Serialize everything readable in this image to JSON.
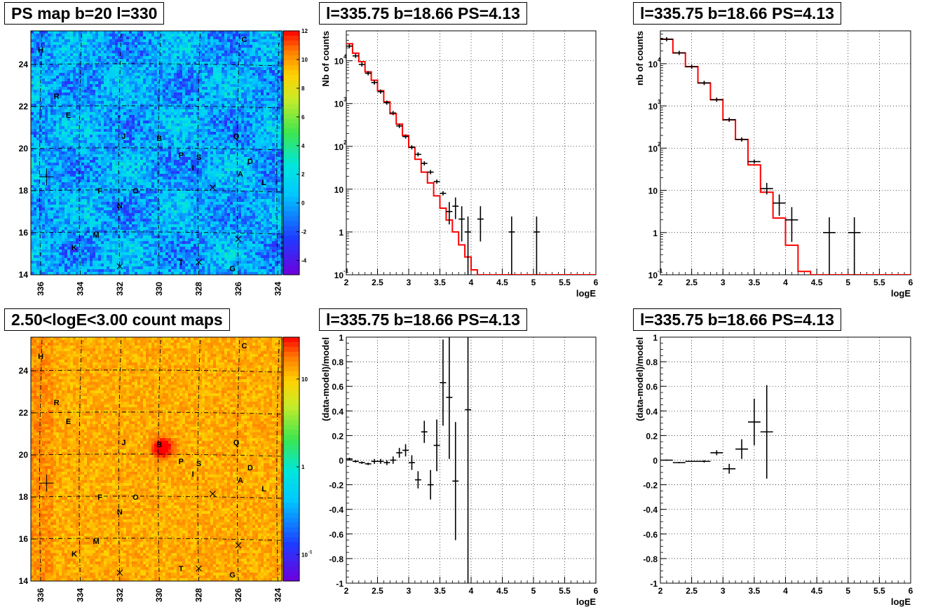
{
  "chart_data": [
    {
      "type": "heatmap",
      "title": "PS map b=20 l=330",
      "x_ticks": [
        "336",
        "334",
        "332",
        "330",
        "328",
        "326",
        "324"
      ],
      "y_ticks": [
        "14",
        "16",
        "18",
        "20",
        "22",
        "24"
      ],
      "xlim": [
        336.5,
        323.8
      ],
      "ylim": [
        14,
        25.6
      ],
      "colorbar": {
        "scale": "linear",
        "range": [
          -5,
          12
        ],
        "ticks": [
          "12",
          "10",
          "8",
          "6",
          "4",
          "2",
          "0",
          "-2",
          "-4"
        ]
      },
      "dominant_level": 0,
      "marker": {
        "shape": "cross",
        "l": 335.7,
        "b": 18.66
      },
      "x_markers": [
        {
          "l": 327.3,
          "b": 18.15
        },
        {
          "l": 326.0,
          "b": 15.7
        },
        {
          "l": 332.0,
          "b": 14.4
        },
        {
          "l": 328.0,
          "b": 14.6
        }
      ],
      "labels": [
        {
          "text": "C",
          "l": 325.7,
          "b": 25.2
        },
        {
          "text": "H",
          "l": 336.0,
          "b": 24.7
        },
        {
          "text": "R",
          "l": 335.2,
          "b": 22.5
        },
        {
          "text": "E",
          "l": 334.6,
          "b": 21.6
        },
        {
          "text": "J",
          "l": 331.8,
          "b": 20.6
        },
        {
          "text": "B",
          "l": 330.0,
          "b": 20.5
        },
        {
          "text": "Q",
          "l": 326.1,
          "b": 20.6
        },
        {
          "text": "P",
          "l": 328.9,
          "b": 19.7
        },
        {
          "text": "S",
          "l": 328.0,
          "b": 19.6
        },
        {
          "text": "D",
          "l": 325.4,
          "b": 19.4
        },
        {
          "text": "I",
          "l": 328.3,
          "b": 19.1
        },
        {
          "text": "A",
          "l": 325.9,
          "b": 18.8
        },
        {
          "text": "L",
          "l": 324.7,
          "b": 18.4
        },
        {
          "text": "F",
          "l": 333.0,
          "b": 18.0
        },
        {
          "text": "O",
          "l": 331.2,
          "b": 18.0
        },
        {
          "text": "N",
          "l": 332.0,
          "b": 17.3
        },
        {
          "text": "M",
          "l": 333.2,
          "b": 15.9
        },
        {
          "text": "K",
          "l": 334.3,
          "b": 15.3
        },
        {
          "text": "T",
          "l": 328.9,
          "b": 14.6
        },
        {
          "text": "G",
          "l": 326.3,
          "b": 14.3
        }
      ]
    },
    {
      "type": "line",
      "title": "l=335.75 b=18.66 PS=4.13",
      "xlabel": "logE",
      "ylabel": "Nb of counts",
      "xlim": [
        2,
        6
      ],
      "ylim": [
        0.1,
        50000
      ],
      "yscale": "log",
      "x_ticks": [
        "2",
        "2.5",
        "3",
        "3.5",
        "4",
        "4.5",
        "5",
        "5.5",
        "6"
      ],
      "y_ticks": [
        {
          "v": 0.1,
          "t": "10"
        },
        {
          "v": 1,
          "t": "1"
        },
        {
          "v": 10,
          "t": "10"
        },
        {
          "v": 100,
          "t": "10"
        },
        {
          "v": 1000,
          "t": "10"
        },
        {
          "v": 10000,
          "t": "10"
        }
      ],
      "grid": true,
      "series": [
        {
          "role": "model",
          "color": "#ff0000",
          "style": "step",
          "edges": [
            2.0,
            2.1,
            2.2,
            2.3,
            2.4,
            2.5,
            2.6,
            2.7,
            2.8,
            2.9,
            3.0,
            3.1,
            3.2,
            3.3,
            3.4,
            3.5,
            3.6,
            3.7,
            3.8,
            3.9,
            4.0,
            4.1,
            4.2,
            4.3,
            6.0
          ],
          "values": [
            25000,
            15000,
            9500,
            5500,
            3500,
            2000,
            1100,
            580,
            330,
            180,
            95,
            50,
            25,
            14,
            7,
            3.6,
            1.9,
            1.0,
            0.5,
            0.26,
            0.13,
            0.1,
            0.1,
            0.1
          ]
        },
        {
          "role": "data",
          "color": "#000000",
          "x": [
            2.05,
            2.15,
            2.25,
            2.35,
            2.45,
            2.55,
            2.65,
            2.75,
            2.85,
            2.95,
            3.05,
            3.15,
            3.25,
            3.35,
            3.45,
            3.55,
            3.65,
            3.75,
            3.85,
            3.95,
            4.15,
            4.65,
            5.05
          ],
          "y": [
            22000,
            13000,
            8200,
            5100,
            3100,
            1900,
            1050,
            600,
            300,
            170,
            95,
            65,
            40,
            25,
            15,
            8,
            3,
            4,
            2,
            1,
            2,
            1,
            1
          ],
          "err_low": [
            0,
            0,
            0,
            0,
            0,
            0,
            0,
            0,
            0,
            0,
            0,
            0,
            0,
            0,
            0,
            0,
            1.5,
            2.0,
            1.4,
            0.9,
            1.4,
            0.9,
            0.9
          ],
          "err_high": [
            0,
            0,
            0,
            0,
            0,
            0,
            0,
            0,
            0,
            0,
            0,
            0,
            0,
            0,
            0,
            0,
            2,
            2.4,
            2,
            1.3,
            2,
            1.3,
            1.3
          ]
        }
      ]
    },
    {
      "type": "line",
      "title": "l=335.75 b=18.66 PS=4.13",
      "xlabel": "logE",
      "ylabel": "nb of counts",
      "xlim": [
        2,
        6
      ],
      "ylim": [
        0.1,
        60000
      ],
      "yscale": "log",
      "x_ticks": [
        "2",
        "2.5",
        "3",
        "3.5",
        "4",
        "4.5",
        "5",
        "5.5",
        "6"
      ],
      "y_ticks": [
        {
          "v": 0.1,
          "t": "10"
        },
        {
          "v": 1,
          "t": "1"
        },
        {
          "v": 10,
          "t": "10"
        },
        {
          "v": 100,
          "t": "10"
        },
        {
          "v": 1000,
          "t": "10"
        },
        {
          "v": 10000,
          "t": "10"
        }
      ],
      "grid": true,
      "series": [
        {
          "role": "model",
          "color": "#ff0000",
          "style": "step",
          "edges": [
            2.0,
            2.2,
            2.4,
            2.6,
            2.8,
            3.0,
            3.2,
            3.4,
            3.6,
            3.8,
            4.0,
            4.2,
            4.4,
            6.0
          ],
          "values": [
            38000,
            18000,
            8500,
            3500,
            1400,
            470,
            160,
            40,
            9,
            2.2,
            0.5,
            0.12,
            0.1
          ],
          "err_low": [],
          "err_high": []
        },
        {
          "role": "data",
          "color": "#000000",
          "x": [
            2.1,
            2.3,
            2.5,
            2.7,
            2.9,
            3.1,
            3.3,
            3.5,
            3.7,
            3.9,
            4.1,
            4.7,
            5.1
          ],
          "y": [
            38000,
            18000,
            8500,
            3500,
            1400,
            470,
            160,
            48,
            11,
            5,
            2,
            1,
            1
          ],
          "err_low": [
            0,
            0,
            0,
            0,
            0,
            0,
            0,
            0,
            3,
            2.5,
            1.4,
            0.9,
            0.9
          ],
          "err_high": [
            0,
            0,
            0,
            0,
            0,
            0,
            0,
            0,
            4,
            3,
            2,
            1.3,
            1.3
          ]
        }
      ]
    },
    {
      "type": "heatmap",
      "title": "2.50<logE<3.00 count maps",
      "x_ticks": [
        "336",
        "334",
        "332",
        "330",
        "328",
        "326",
        "324"
      ],
      "y_ticks": [
        "14",
        "16",
        "18",
        "20",
        "22",
        "24"
      ],
      "xlim": [
        336.5,
        323.8
      ],
      "ylim": [
        14,
        25.6
      ],
      "colorbar": {
        "scale": "log",
        "range": [
          0.05,
          30
        ],
        "ticks": [
          {
            "v": 10,
            "t": "10"
          },
          {
            "v": 1,
            "t": "1"
          },
          {
            "v": 0.1,
            "t": "10"
          }
        ]
      },
      "dominant_level": 12,
      "hotspot": {
        "l": 329.9,
        "b": 20.4,
        "peak": 30
      },
      "marker": {
        "shape": "cross",
        "l": 335.7,
        "b": 18.66
      },
      "x_markers": [
        {
          "l": 327.3,
          "b": 18.15
        },
        {
          "l": 326.0,
          "b": 15.7
        },
        {
          "l": 332.0,
          "b": 14.4
        },
        {
          "l": 328.0,
          "b": 14.6
        }
      ],
      "labels": [
        {
          "text": "C",
          "l": 325.7,
          "b": 25.2
        },
        {
          "text": "H",
          "l": 336.0,
          "b": 24.7
        },
        {
          "text": "R",
          "l": 335.2,
          "b": 22.5
        },
        {
          "text": "E",
          "l": 334.6,
          "b": 21.6
        },
        {
          "text": "J",
          "l": 331.8,
          "b": 20.6
        },
        {
          "text": "B",
          "l": 330.0,
          "b": 20.5
        },
        {
          "text": "Q",
          "l": 326.1,
          "b": 20.6
        },
        {
          "text": "P",
          "l": 328.9,
          "b": 19.7
        },
        {
          "text": "S",
          "l": 328.0,
          "b": 19.6
        },
        {
          "text": "D",
          "l": 325.4,
          "b": 19.4
        },
        {
          "text": "I",
          "l": 328.3,
          "b": 19.1
        },
        {
          "text": "A",
          "l": 325.9,
          "b": 18.8
        },
        {
          "text": "L",
          "l": 324.7,
          "b": 18.4
        },
        {
          "text": "F",
          "l": 333.0,
          "b": 18.0
        },
        {
          "text": "O",
          "l": 331.2,
          "b": 18.0
        },
        {
          "text": "N",
          "l": 332.0,
          "b": 17.3
        },
        {
          "text": "M",
          "l": 333.2,
          "b": 15.9
        },
        {
          "text": "K",
          "l": 334.3,
          "b": 15.3
        },
        {
          "text": "T",
          "l": 328.9,
          "b": 14.6
        },
        {
          "text": "G",
          "l": 326.3,
          "b": 14.3
        }
      ]
    },
    {
      "type": "scatter",
      "title": "l=335.75 b=18.66 PS=4.13",
      "xlabel": "logE",
      "ylabel": "(data-model)/model",
      "xlim": [
        2,
        6
      ],
      "ylim": [
        -1,
        1
      ],
      "x_ticks": [
        "2",
        "2.5",
        "3",
        "3.5",
        "4",
        "4.5",
        "5",
        "5.5",
        "6"
      ],
      "y_ticks": [
        "-1",
        "-0.8",
        "-0.6",
        "-0.4",
        "-0.2",
        "0",
        "0.2",
        "0.4",
        "0.6",
        "0.8",
        "1"
      ],
      "grid": true,
      "series": [
        {
          "role": "residual",
          "color": "#000000",
          "xerr": 0.05,
          "x": [
            2.05,
            2.15,
            2.25,
            2.35,
            2.45,
            2.55,
            2.65,
            2.75,
            2.85,
            2.95,
            3.05,
            3.15,
            3.25,
            3.35,
            3.45,
            3.55,
            3.65,
            3.75,
            3.95
          ],
          "y": [
            0.01,
            -0.01,
            -0.02,
            -0.03,
            -0.01,
            -0.01,
            -0.02,
            0.0,
            0.06,
            0.08,
            -0.02,
            -0.16,
            0.23,
            -0.2,
            0.12,
            0.63,
            0.51,
            -0.17,
            0.41
          ],
          "err": [
            0.01,
            0.01,
            0.01,
            0.01,
            0.02,
            0.02,
            0.02,
            0.03,
            0.04,
            0.05,
            0.06,
            0.07,
            0.09,
            0.12,
            0.21,
            0.35,
            0.5,
            0.48,
            1.5
          ]
        }
      ]
    },
    {
      "type": "scatter",
      "title": "l=335.75 b=18.66 PS=4.13",
      "xlabel": "logE",
      "ylabel": "(data-model)/model",
      "xlim": [
        2,
        6
      ],
      "ylim": [
        -1,
        1
      ],
      "x_ticks": [
        "2",
        "2.5",
        "3",
        "3.5",
        "4",
        "4.5",
        "5",
        "5.5",
        "6"
      ],
      "y_ticks": [
        "-1",
        "-0.8",
        "-0.6",
        "-0.4",
        "-0.2",
        "0",
        "0.2",
        "0.4",
        "0.6",
        "0.8",
        "1"
      ],
      "grid": true,
      "series": [
        {
          "role": "residual",
          "color": "#000000",
          "xerr": 0.1,
          "x": [
            2.1,
            2.3,
            2.5,
            2.7,
            2.9,
            3.1,
            3.3,
            3.5,
            3.7
          ],
          "y": [
            0.0,
            -0.02,
            -0.01,
            -0.01,
            0.06,
            -0.07,
            0.09,
            0.31,
            0.23
          ],
          "err": [
            0.005,
            0.005,
            0.005,
            0.01,
            0.02,
            0.04,
            0.08,
            0.19,
            0.38
          ]
        }
      ]
    }
  ]
}
